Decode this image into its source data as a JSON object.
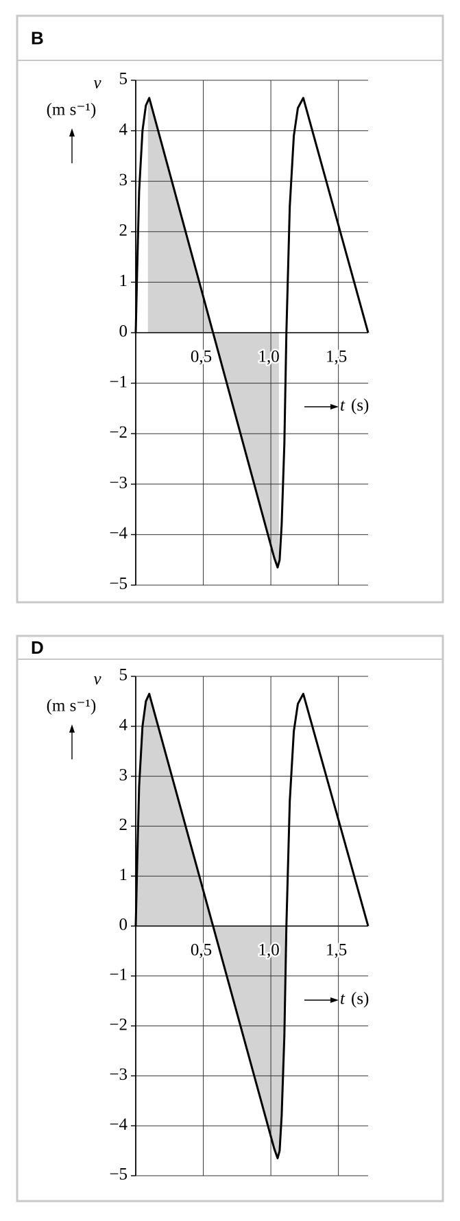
{
  "chart_data": [
    {
      "type": "line",
      "title": "B",
      "x": [
        0,
        0.01,
        0.025,
        0.05,
        0.075,
        0.1,
        1.024,
        1.05,
        1.065,
        1.08,
        1.1,
        1.115,
        1.14,
        1.17,
        1.2,
        1.24,
        1.72
      ],
      "values": [
        0,
        1.2,
        2.8,
        4.0,
        4.5,
        4.65,
        -4.45,
        -4.65,
        -4.5,
        -3.8,
        -2.2,
        0,
        2.5,
        3.9,
        4.45,
        4.65,
        0
      ],
      "color": "#000000",
      "fill_color": "#d3d3d3",
      "shade_x": [
        0.09,
        1.06
      ],
      "xlim": [
        0,
        1.72
      ],
      "ylim": [
        -5,
        5
      ],
      "xticks": [
        {
          "value": 0.5,
          "label": "0,5"
        },
        {
          "value": 1,
          "label": "1,0"
        },
        {
          "value": 1.5,
          "label": "1,5"
        }
      ],
      "yticks": [
        {
          "value": -5,
          "label": "−5"
        },
        {
          "value": -4,
          "label": "−4"
        },
        {
          "value": -3,
          "label": "−3"
        },
        {
          "value": -2,
          "label": "−2"
        },
        {
          "value": -1,
          "label": "−1"
        },
        0,
        1,
        2,
        3,
        4,
        5
      ],
      "y_label": "v",
      "y_unit": "(m s⁻¹)",
      "x_label": "t",
      "x_unit": "(s)",
      "grid": true
    },
    {
      "type": "line",
      "title": "D",
      "x": [
        0,
        0.01,
        0.025,
        0.05,
        0.075,
        0.1,
        1.024,
        1.05,
        1.065,
        1.08,
        1.1,
        1.115,
        1.14,
        1.17,
        1.2,
        1.24,
        1.72
      ],
      "values": [
        0,
        1.2,
        2.8,
        4.0,
        4.5,
        4.65,
        -4.45,
        -4.65,
        -4.5,
        -3.8,
        -2.2,
        0,
        2.5,
        3.9,
        4.45,
        4.65,
        0
      ],
      "color": "#000000",
      "fill_color": "#d3d3d3",
      "shade_x": [
        0,
        1.115
      ],
      "xlim": [
        0,
        1.72
      ],
      "ylim": [
        -5,
        5
      ],
      "xticks": [
        {
          "value": 0.5,
          "label": "0,5"
        },
        {
          "value": 1,
          "label": "1,0"
        },
        {
          "value": 1.5,
          "label": "1,5"
        }
      ],
      "yticks": [
        {
          "value": -5,
          "label": "−5"
        },
        {
          "value": -4,
          "label": "−4"
        },
        {
          "value": -3,
          "label": "−3"
        },
        {
          "value": -2,
          "label": "−2"
        },
        {
          "value": -1,
          "label": "−1"
        },
        0,
        1,
        2,
        3,
        4,
        5
      ],
      "y_label": "v",
      "y_unit": "(m s⁻¹)",
      "x_label": "t",
      "x_unit": "(s)",
      "grid": true
    }
  ]
}
